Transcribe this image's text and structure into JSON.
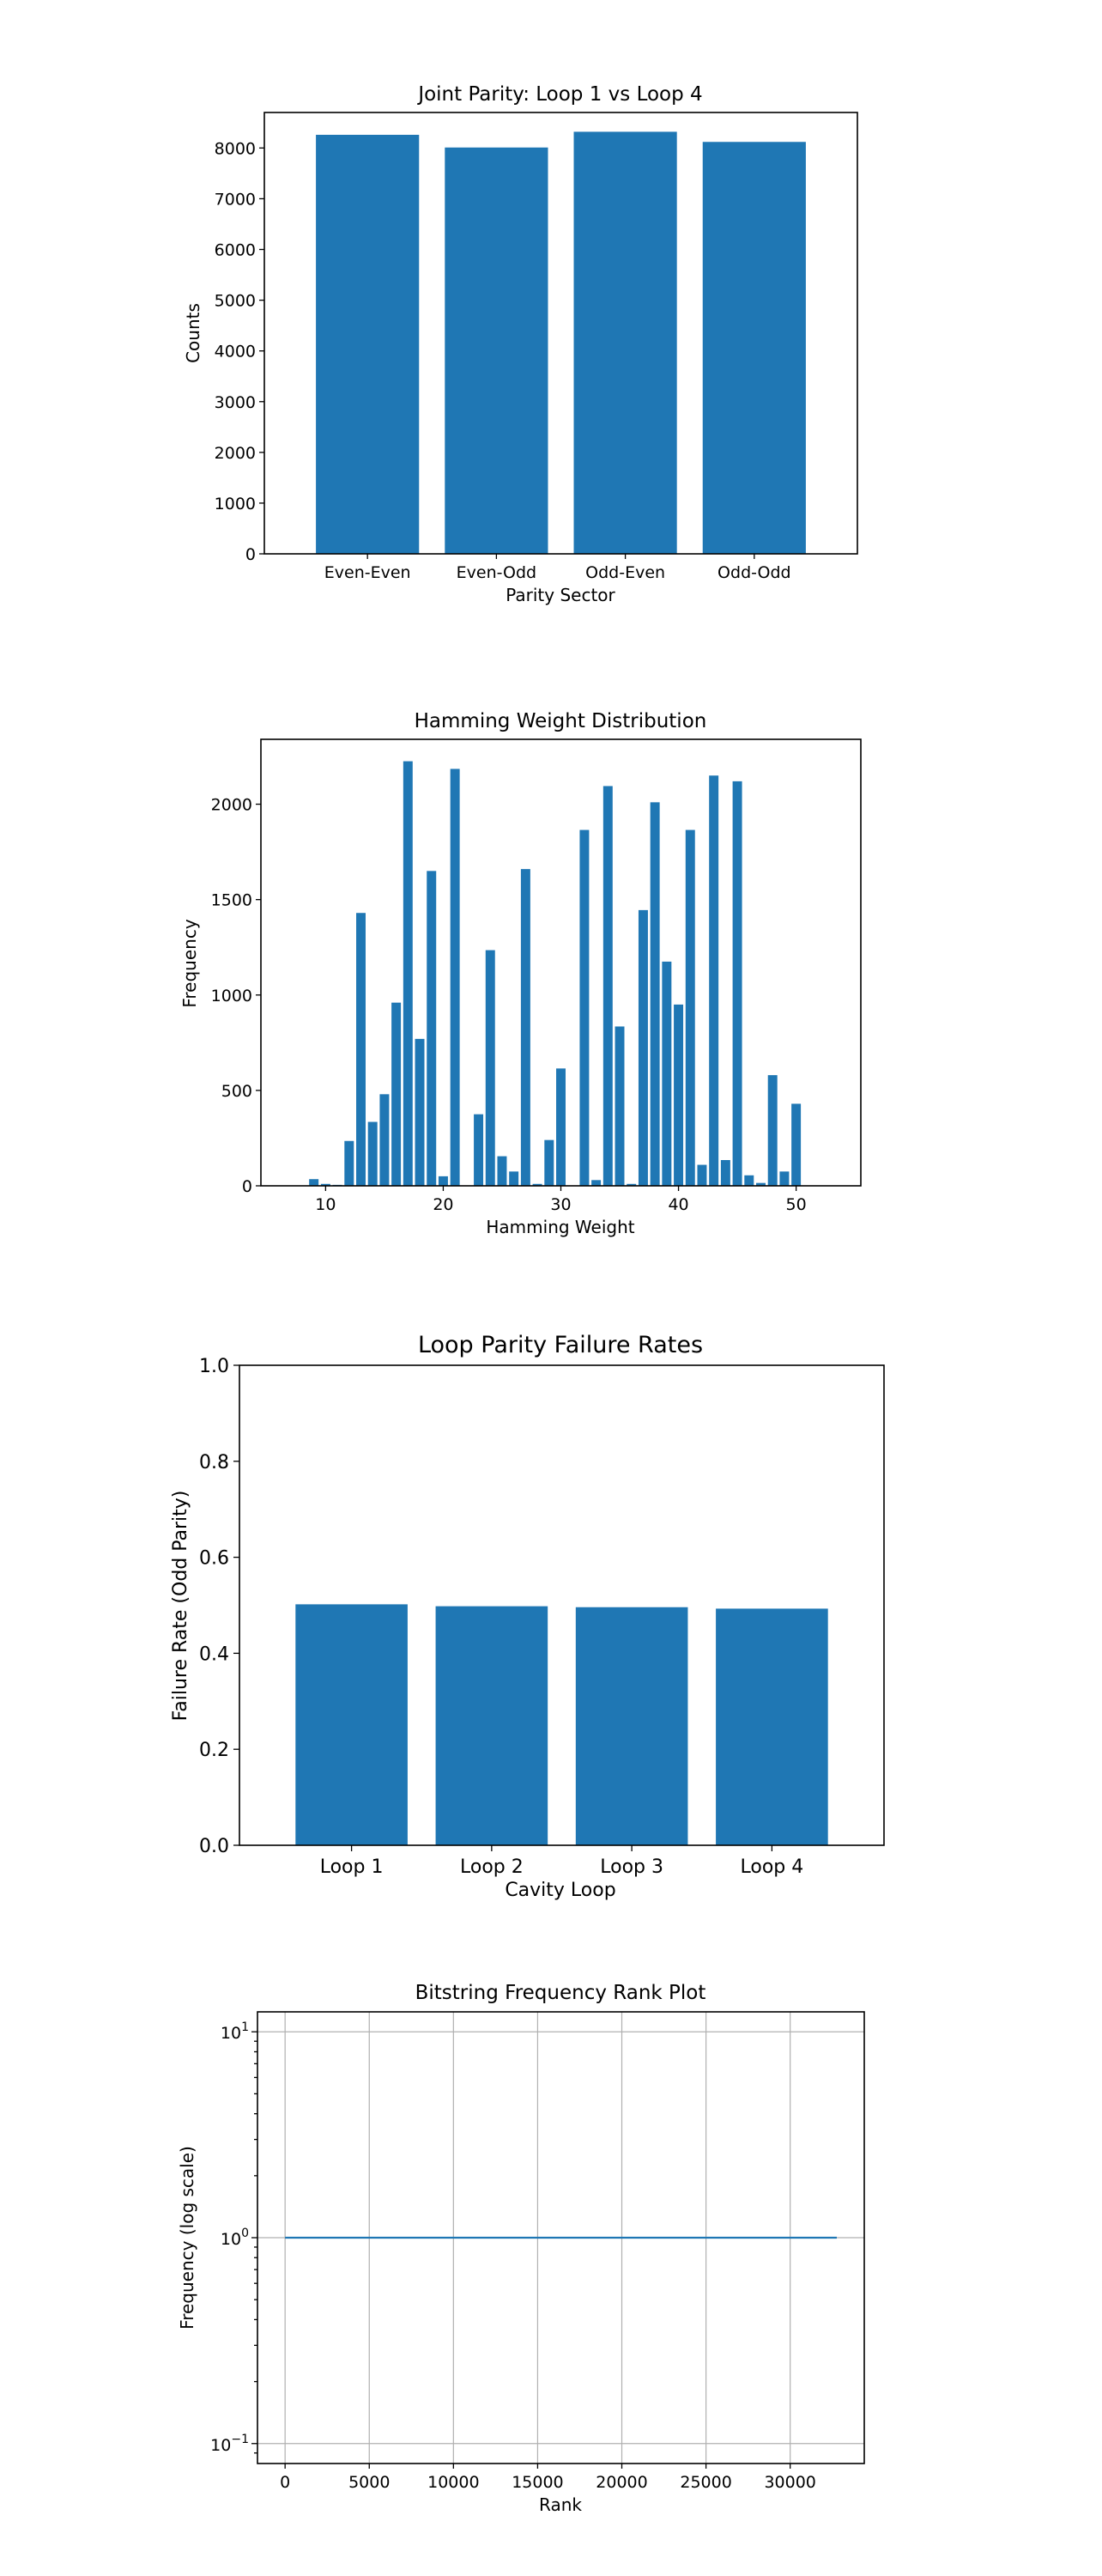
{
  "chart_data": [
    {
      "type": "bar",
      "title": "Joint Parity: Loop 1 vs Loop 4",
      "xlabel": "Parity Sector",
      "ylabel": "Counts",
      "categories": [
        "Even-Even",
        "Even-Odd",
        "Odd-Even",
        "Odd-Odd"
      ],
      "values": [
        8260,
        8010,
        8320,
        8120
      ],
      "ylim": [
        0,
        8700
      ],
      "yticks": [
        0,
        1000,
        2000,
        3000,
        4000,
        5000,
        6000,
        7000,
        8000
      ],
      "color": "#1f77b4",
      "grid": false
    },
    {
      "type": "bar",
      "title": "Hamming Weight Distribution",
      "xlabel": "Hamming Weight",
      "ylabel": "Frequency",
      "x": [
        9,
        10,
        11,
        12,
        13,
        14,
        15,
        16,
        17,
        18,
        19,
        20,
        21,
        22,
        23,
        24,
        25,
        26,
        27,
        28,
        29,
        30,
        31,
        32,
        33,
        34,
        35,
        36,
        37,
        38,
        39,
        40,
        41,
        42,
        43,
        44,
        45,
        46,
        47,
        48,
        49,
        50,
        51,
        52,
        53
      ],
      "values": [
        35,
        10,
        5,
        235,
        1430,
        335,
        480,
        960,
        2225,
        770,
        1650,
        50,
        2185,
        0,
        375,
        1235,
        155,
        75,
        1660,
        10,
        240,
        615,
        0,
        1865,
        30,
        2095,
        835,
        10,
        1445,
        2010,
        1175,
        950,
        1865,
        110,
        2150,
        135,
        2120,
        55,
        15,
        580,
        75,
        430,
        0,
        0,
        0
      ],
      "xlim": [
        4.5,
        55.5
      ],
      "ylim": [
        0,
        2340
      ],
      "xticks": [
        10,
        20,
        30,
        40,
        50
      ],
      "yticks": [
        0,
        500,
        1000,
        1500,
        2000
      ],
      "color": "#1f77b4",
      "grid": false
    },
    {
      "type": "bar",
      "title": "Loop Parity Failure Rates",
      "xlabel": "Cavity Loop",
      "ylabel": "Failure Rate (Odd Parity)",
      "categories": [
        "Loop 1",
        "Loop 2",
        "Loop 3",
        "Loop 4"
      ],
      "values": [
        0.502,
        0.498,
        0.496,
        0.493
      ],
      "ylim": [
        0,
        1.0
      ],
      "yticks": [
        "0.0",
        "0.2",
        "0.4",
        "0.6",
        "0.8",
        "1.0"
      ],
      "color": "#1f77b4",
      "grid": false
    },
    {
      "type": "line",
      "title": "Bitstring Frequency Rank Plot",
      "xlabel": "Rank",
      "ylabel": "Frequency (log scale)",
      "x": [
        0,
        32768
      ],
      "y": [
        1,
        1
      ],
      "xlim": [
        -1640,
        34400
      ],
      "ylim": [
        0.08,
        12.5
      ],
      "yscale": "log",
      "xticks": [
        0,
        5000,
        10000,
        15000,
        20000,
        25000,
        30000
      ],
      "yticks": [
        {
          "base": "10",
          "exp": "1"
        },
        {
          "base": "10",
          "exp": "0"
        },
        {
          "base": "10",
          "exp": "−1"
        }
      ],
      "color": "#1f77b4",
      "grid": true
    }
  ]
}
